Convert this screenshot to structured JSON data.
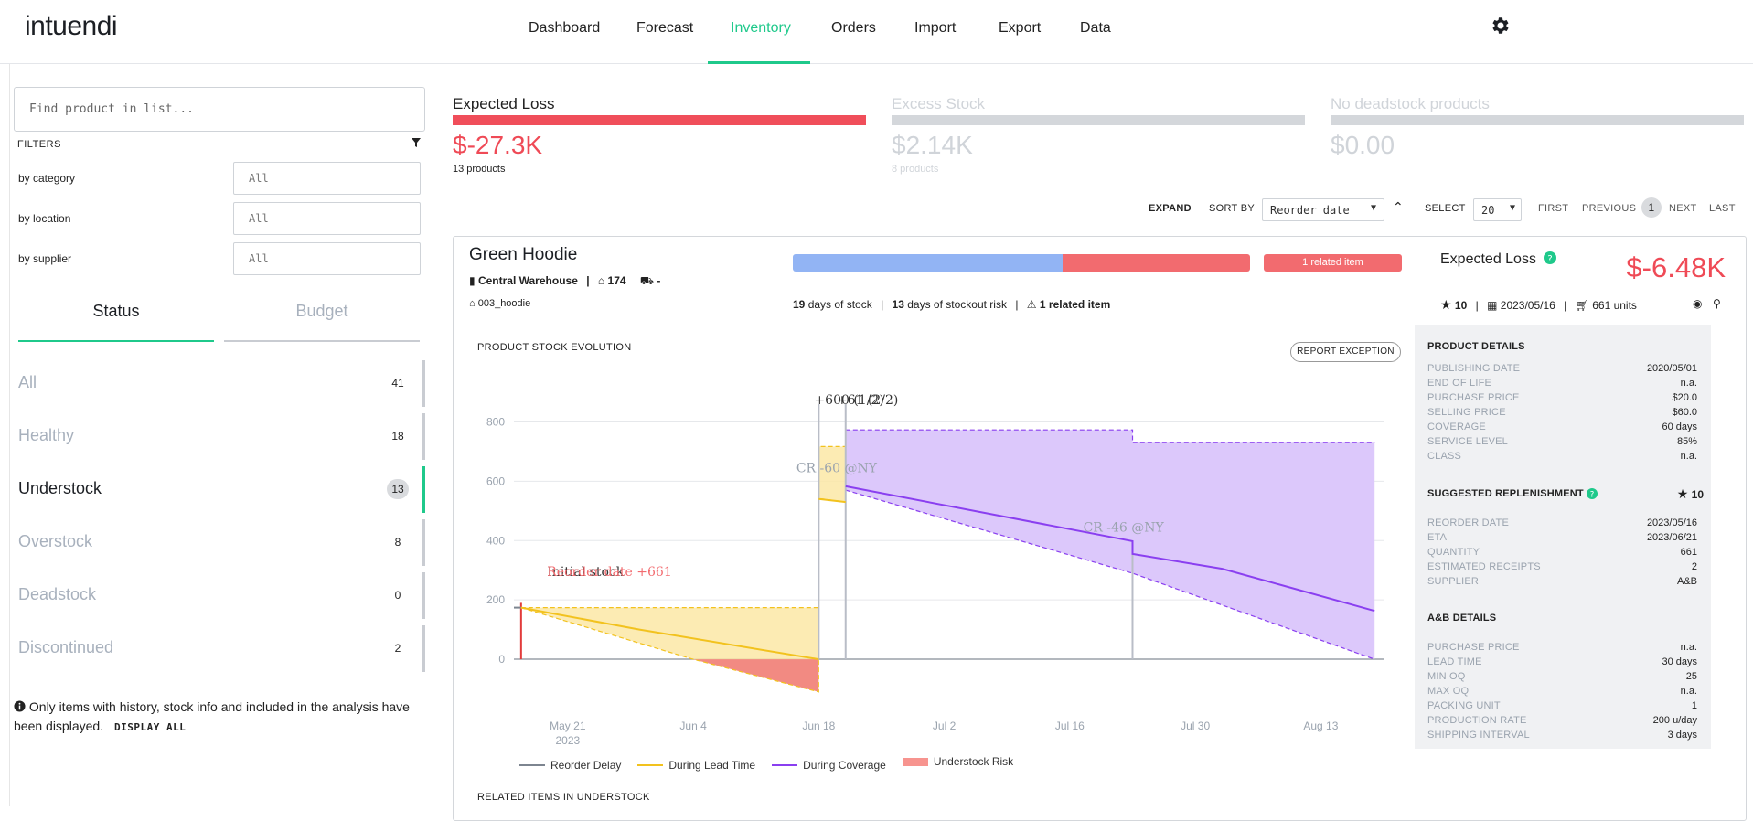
{
  "app": {
    "logo": "intuendi"
  },
  "nav": {
    "items": [
      "Dashboard",
      "Forecast",
      "Inventory",
      "Orders",
      "Import",
      "Export",
      "Data"
    ],
    "active": "Inventory",
    "settings_icon": "gear-icon"
  },
  "sidebar": {
    "search_placeholder": "Find product in list...",
    "filters_label": "FILTERS",
    "filter_icon": "funnel-icon",
    "filters": [
      {
        "label": "by category",
        "value": "All"
      },
      {
        "label": "by location",
        "value": "All"
      },
      {
        "label": "by supplier",
        "value": "All"
      }
    ],
    "tabs": [
      "Status",
      "Budget"
    ],
    "active_tab": "Status",
    "statuses": [
      {
        "label": "All",
        "count": "41"
      },
      {
        "label": "Healthy",
        "count": "18"
      },
      {
        "label": "Understock",
        "count": "13",
        "active": true
      },
      {
        "label": "Overstock",
        "count": "8"
      },
      {
        "label": "Deadstock",
        "count": "0"
      },
      {
        "label": "Discontinued",
        "count": "2"
      }
    ],
    "note": "Only items with history, stock info and included in the analysis have been displayed.",
    "display_all": "DISPLAY ALL"
  },
  "kpis": [
    {
      "title": "Expected Loss",
      "value": "$-27.3K",
      "sub": "13 products",
      "bar_color": "#f04e5a",
      "text_color": "#ef4a56",
      "title_color": "#222222",
      "sub_color": "#222222"
    },
    {
      "title": "Excess Stock",
      "value": "$2.14K",
      "sub": "8 products",
      "bar_color": "#d4d7db",
      "text_color": "#d0d4d9",
      "title_color": "#d0d4d9",
      "sub_color": "#d0d4d9"
    },
    {
      "title": "No deadstock products",
      "value": "$0.00",
      "sub": "",
      "bar_color": "#d4d7db",
      "text_color": "#d0d4d9",
      "title_color": "#d0d4d9",
      "sub_color": "#d0d4d9"
    }
  ],
  "controls": {
    "expand": "EXPAND",
    "sort_by_label": "SORT BY",
    "sort_value": "Reorder date",
    "select_label": "SELECT",
    "select_value": "20",
    "first": "FIRST",
    "previous": "PREVIOUS",
    "page": "1",
    "next": "NEXT",
    "last": "LAST"
  },
  "product": {
    "name": "Green Hoodie",
    "warehouse": "Central Warehouse",
    "stock": "174",
    "transit": "-",
    "sku": "003_hoodie",
    "stock_split": [
      0.59,
      0.41
    ],
    "stock_colors": [
      "#92b4f4",
      "#f26b6f"
    ],
    "related_badge": "1 related item",
    "days_of_stock": "19",
    "days_of_stock_label": "days of stock",
    "stockout_days": "13",
    "stockout_label": "days of stockout risk",
    "related_count": "1 related item",
    "expected_loss_label": "Expected Loss",
    "expected_loss": "$-6.48K",
    "priority": "10",
    "reorder_date": "2023/05/16",
    "units": "661 units"
  },
  "chart_section": {
    "label": "PRODUCT STOCK EVOLUTION",
    "report_button": "REPORT EXCEPTION",
    "related_label": "RELATED ITEMS IN UNDERSTOCK"
  },
  "chart_data": {
    "type": "area",
    "y_ticks": [
      "0",
      "200",
      "400",
      "600",
      "800"
    ],
    "ylim": [
      -120,
      860
    ],
    "x_ticks": [
      {
        "label": "May 21",
        "day": 0
      },
      {
        "label": "Jun 4",
        "day": 14
      },
      {
        "label": "Jun 18",
        "day": 28
      },
      {
        "label": "Jul 2",
        "day": 42
      },
      {
        "label": "Jul 16",
        "day": 56
      },
      {
        "label": "Jul 30",
        "day": 70
      },
      {
        "label": "Aug 13",
        "day": 84
      }
    ],
    "year_label": "2023",
    "xlim": [
      -6,
      91
    ],
    "annotations": [
      {
        "text": "Initial stock",
        "day": -2.3,
        "y": 280,
        "color": "#333333"
      },
      {
        "text": "Reorder date +661",
        "day": -2.3,
        "y": 280,
        "color": "#f26b6f"
      },
      {
        "text": "+600 (1/2)",
        "day": 27.5,
        "y": 860,
        "color": "#333333"
      },
      {
        "text": "+61 (2/2)",
        "day": 30,
        "y": 860,
        "color": "#333333"
      },
      {
        "text": "CR -60 @NY",
        "day": 30,
        "y": 630,
        "color": "#9aa3ae"
      },
      {
        "text": "CR -46 @NY",
        "day": 62,
        "y": 430,
        "color": "#9aa3ae"
      }
    ],
    "series": [
      {
        "name": "Reorder Delay",
        "color": "#7d8590"
      },
      {
        "name": "During Lead Time",
        "color": "#f2c21e"
      },
      {
        "name": "During Coverage",
        "color": "#8a3ff0"
      },
      {
        "name": "Understock Risk",
        "color": "#f7948f"
      }
    ],
    "reorder_delay": [
      [
        -6,
        174
      ],
      [
        -5.2,
        174
      ]
    ],
    "lead_time_upper": [
      [
        -5.2,
        174
      ],
      [
        28,
        174
      ],
      [
        28,
        717
      ],
      [
        31,
        717
      ],
      [
        31,
        542
      ]
    ],
    "lead_time_line": [
      [
        -5.2,
        174
      ],
      [
        8,
        100
      ],
      [
        28,
        0
      ]
    ],
    "lead_time_lower": [
      [
        -5.2,
        174
      ],
      [
        14,
        0
      ],
      [
        28,
        -110
      ],
      [
        28,
        542
      ],
      [
        31,
        530
      ]
    ],
    "understock_area": [
      [
        14,
        0
      ],
      [
        28,
        0
      ],
      [
        28,
        -110
      ]
    ],
    "coverage_upper": [
      [
        31,
        773
      ],
      [
        63,
        773
      ],
      [
        63,
        730
      ],
      [
        90,
        730
      ]
    ],
    "coverage_line": [
      [
        31,
        583
      ],
      [
        63,
        398
      ],
      [
        63,
        355
      ],
      [
        73,
        305
      ],
      [
        90,
        163
      ]
    ],
    "coverage_lower": [
      [
        31,
        570
      ],
      [
        63,
        290
      ],
      [
        90,
        0
      ]
    ],
    "markers": [
      {
        "day": -5.2,
        "y_from": 0,
        "y_to": 190,
        "color": "#e23b3b"
      },
      {
        "day": 28,
        "y_from": 0,
        "y_to": 860,
        "color": "#b9bdc7"
      },
      {
        "day": 31,
        "y_from": 0,
        "y_to": 860,
        "color": "#b9bdc7"
      },
      {
        "day": 63,
        "y_from": 0,
        "y_to": 398,
        "color": "#b9bdc7"
      }
    ]
  },
  "details": {
    "product_details_title": "PRODUCT DETAILS",
    "product_details": [
      {
        "k": "PUBLISHING DATE",
        "v": "2020/05/01"
      },
      {
        "k": "END OF LIFE",
        "v": "n.a."
      },
      {
        "k": "PURCHASE PRICE",
        "v": "$20.0"
      },
      {
        "k": "SELLING PRICE",
        "v": "$60.0"
      },
      {
        "k": "COVERAGE",
        "v": "60 days"
      },
      {
        "k": "SERVICE LEVEL",
        "v": "85%"
      },
      {
        "k": "CLASS",
        "v": "n.a."
      }
    ],
    "replenishment_title": "SUGGESTED REPLENISHMENT",
    "replenishment_priority": "10",
    "replenishment": [
      {
        "k": "REORDER DATE",
        "v": "2023/05/16"
      },
      {
        "k": "ETA",
        "v": "2023/06/21"
      },
      {
        "k": "QUANTITY",
        "v": "661"
      },
      {
        "k": "ESTIMATED RECEIPTS",
        "v": "2"
      },
      {
        "k": "SUPPLIER",
        "v": "A&B"
      }
    ],
    "supplier_title": "A&B DETAILS",
    "supplier": [
      {
        "k": "PURCHASE PRICE",
        "v": "n.a."
      },
      {
        "k": "LEAD TIME",
        "v": "30 days"
      },
      {
        "k": "MIN OQ",
        "v": "25"
      },
      {
        "k": "MAX OQ",
        "v": "n.a."
      },
      {
        "k": "PACKING UNIT",
        "v": "1"
      },
      {
        "k": "PRODUCTION RATE",
        "v": "200 u/day"
      },
      {
        "k": "SHIPPING INTERVAL",
        "v": "3 days"
      }
    ]
  }
}
